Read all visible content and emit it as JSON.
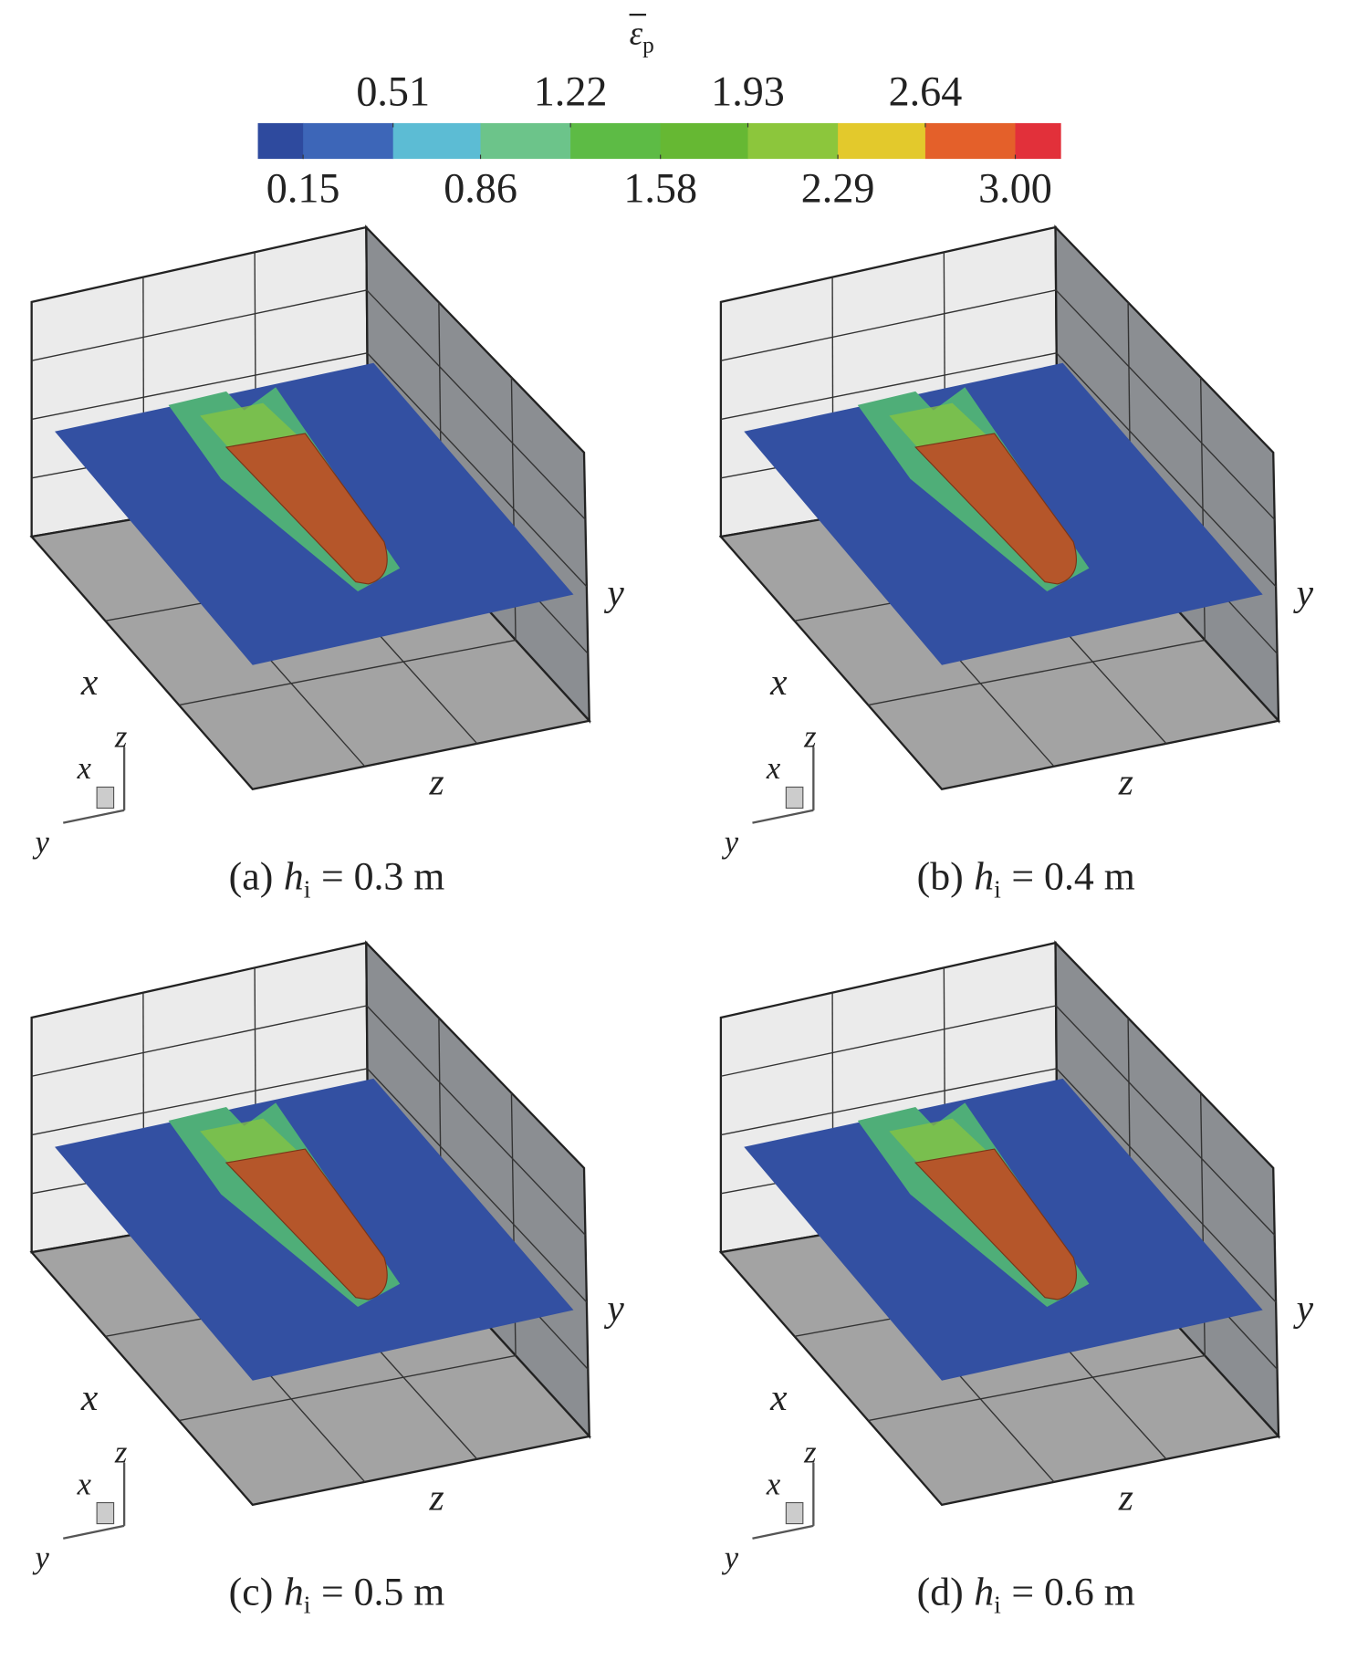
{
  "colorbar": {
    "symbol": "ε",
    "subscript": "p",
    "levels": [
      0.15,
      0.51,
      0.86,
      1.22,
      1.58,
      1.93,
      2.29,
      2.64,
      {
        "value": 3,
        "label": "3.00"
      }
    ],
    "colors": [
      "#2e4a9e",
      "#3d66b8",
      "#5cbcd4",
      "#6cc48a",
      "#5dbb45",
      "#66b833",
      "#8cc63c",
      "#e3c92c",
      "#e4602a",
      "#e2303a"
    ]
  },
  "axis_labels": {
    "x": "x",
    "y": "y",
    "z": "z"
  },
  "panels": [
    {
      "label": "(a)",
      "variable": "h",
      "subscript": "i",
      "equation": "= 0.3 m"
    },
    {
      "label": "(b)",
      "variable": "h",
      "subscript": "i",
      "equation": "= 0.4 m"
    },
    {
      "label": "(c)",
      "variable": "h",
      "subscript": "i",
      "equation": "= 0.5 m"
    },
    {
      "label": "(d)",
      "variable": "h",
      "subscript": "i",
      "equation": "= 0.6 m"
    }
  ]
}
